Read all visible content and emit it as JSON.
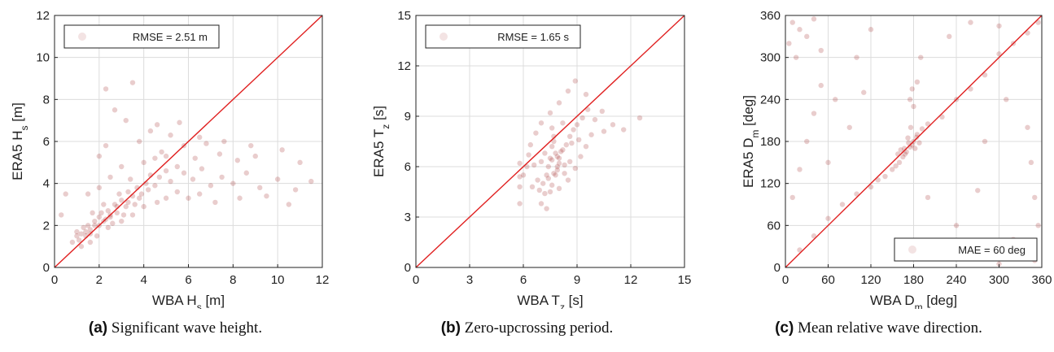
{
  "chart_data": [
    {
      "type": "scatter",
      "xlabel": "WBA H",
      "xlabel_sub": "s",
      "xlabel_unit": " [m]",
      "ylabel": "ERA5 H",
      "ylabel_sub": "s",
      "ylabel_unit": " [m]",
      "xlim": [
        0,
        12
      ],
      "ylim": [
        0,
        12
      ],
      "xticks": [
        0,
        2,
        4,
        6,
        8,
        10,
        12
      ],
      "yticks": [
        0,
        2,
        4,
        6,
        8,
        10,
        12
      ],
      "grid": true,
      "reference_line": "y = x",
      "legend": {
        "text": "RMSE = 2.51 m",
        "placement": "top-left"
      },
      "point_color": "#9b1c1c",
      "line_color": "#e02020",
      "points": [
        [
          1.0,
          1.5
        ],
        [
          1.2,
          1.6
        ],
        [
          1.4,
          1.7
        ],
        [
          1.5,
          2.0
        ],
        [
          1.6,
          1.8
        ],
        [
          1.8,
          2.2
        ],
        [
          2.0,
          2.4
        ],
        [
          2.0,
          2.0
        ],
        [
          2.1,
          2.6
        ],
        [
          2.3,
          2.3
        ],
        [
          2.4,
          2.7
        ],
        [
          2.5,
          2.5
        ],
        [
          2.7,
          3.0
        ],
        [
          2.8,
          2.6
        ],
        [
          3.0,
          3.2
        ],
        [
          3.2,
          2.9
        ],
        [
          3.3,
          3.6
        ],
        [
          3.5,
          3.4
        ],
        [
          3.7,
          3.8
        ],
        [
          3.9,
          3.5
        ],
        [
          4.1,
          4.0
        ],
        [
          4.3,
          4.4
        ],
        [
          4.5,
          3.9
        ],
        [
          4.7,
          4.3
        ],
        [
          5.0,
          4.6
        ],
        [
          5.2,
          4.1
        ],
        [
          5.5,
          4.8
        ],
        [
          5.8,
          4.5
        ],
        [
          6.2,
          4.2
        ],
        [
          6.6,
          4.7
        ],
        [
          7.0,
          3.9
        ],
        [
          7.5,
          4.3
        ],
        [
          8.0,
          4.0
        ],
        [
          8.6,
          4.5
        ],
        [
          9.2,
          3.8
        ],
        [
          10.0,
          4.2
        ],
        [
          10.8,
          3.7
        ],
        [
          11.5,
          4.1
        ],
        [
          1.1,
          1.3
        ],
        [
          1.3,
          1.9
        ],
        [
          1.7,
          2.6
        ],
        [
          1.9,
          1.5
        ],
        [
          2.2,
          3.0
        ],
        [
          2.6,
          2.1
        ],
        [
          2.9,
          3.5
        ],
        [
          3.1,
          2.5
        ],
        [
          3.4,
          4.2
        ],
        [
          3.6,
          3.0
        ],
        [
          2.0,
          5.3
        ],
        [
          2.3,
          5.8
        ],
        [
          2.7,
          7.5
        ],
        [
          3.2,
          7.0
        ],
        [
          3.8,
          6.0
        ],
        [
          4.3,
          6.5
        ],
        [
          4.8,
          5.5
        ],
        [
          5.2,
          6.3
        ],
        [
          5.8,
          5.8
        ],
        [
          6.3,
          5.2
        ],
        [
          6.8,
          5.9
        ],
        [
          7.4,
          5.4
        ],
        [
          8.2,
          5.1
        ],
        [
          9.0,
          5.3
        ],
        [
          1.5,
          3.5
        ],
        [
          2.0,
          3.8
        ],
        [
          2.5,
          4.3
        ],
        [
          3.0,
          4.8
        ],
        [
          0.3,
          2.5
        ],
        [
          0.5,
          3.5
        ],
        [
          0.8,
          1.2
        ],
        [
          1.2,
          1.0
        ],
        [
          1.6,
          1.2
        ],
        [
          2.4,
          1.9
        ],
        [
          3.0,
          2.2
        ],
        [
          3.5,
          2.5
        ],
        [
          4.0,
          2.9
        ],
        [
          4.6,
          3.1
        ],
        [
          5.0,
          3.3
        ],
        [
          5.5,
          3.6
        ],
        [
          6.0,
          3.3
        ],
        [
          6.5,
          3.5
        ],
        [
          7.2,
          3.1
        ],
        [
          8.3,
          3.3
        ],
        [
          9.5,
          3.4
        ],
        [
          10.5,
          3.0
        ],
        [
          11.0,
          5.0
        ],
        [
          4.0,
          5.0
        ],
        [
          4.5,
          5.2
        ],
        [
          5.0,
          5.3
        ],
        [
          1.8,
          2.0
        ],
        [
          2.2,
          2.2
        ],
        [
          2.5,
          2.4
        ],
        [
          1.4,
          1.5
        ],
        [
          1.6,
          1.6
        ],
        [
          2.8,
          2.9
        ],
        [
          3.3,
          3.1
        ],
        [
          3.8,
          3.3
        ],
        [
          4.2,
          3.7
        ],
        [
          1.0,
          1.7
        ],
        [
          2.3,
          8.5
        ],
        [
          3.5,
          8.8
        ],
        [
          4.6,
          6.8
        ],
        [
          5.6,
          6.9
        ],
        [
          6.5,
          6.2
        ],
        [
          7.6,
          6.0
        ],
        [
          8.8,
          5.8
        ],
        [
          10.2,
          5.6
        ]
      ]
    },
    {
      "type": "scatter",
      "xlabel": "WBA T",
      "xlabel_sub": "z",
      "xlabel_unit": " [s]",
      "ylabel": "ERA5 T",
      "ylabel_sub": "z",
      "ylabel_unit": " [s]",
      "xlim": [
        0,
        15
      ],
      "ylim": [
        0,
        15
      ],
      "xticks": [
        0,
        3,
        6,
        9,
        12,
        15
      ],
      "yticks": [
        0,
        3,
        6,
        9,
        12,
        15
      ],
      "grid": true,
      "reference_line": "y = x",
      "legend": {
        "text": "RMSE = 1.65 s",
        "placement": "top-left"
      },
      "point_color": "#9b1c1c",
      "line_color": "#e02020",
      "points": [
        [
          7.5,
          6.5
        ],
        [
          7.8,
          6.8
        ],
        [
          7.6,
          7.2
        ],
        [
          8.0,
          6.2
        ],
        [
          7.9,
          5.8
        ],
        [
          7.7,
          7.5
        ],
        [
          8.2,
          7.0
        ],
        [
          7.4,
          6.0
        ],
        [
          7.3,
          5.5
        ],
        [
          8.4,
          7.3
        ],
        [
          7.9,
          6.6
        ],
        [
          7.6,
          6.4
        ],
        [
          8.1,
          6.9
        ],
        [
          7.7,
          5.6
        ],
        [
          7.2,
          6.8
        ],
        [
          8.3,
          6.1
        ],
        [
          8.6,
          7.8
        ],
        [
          8.8,
          8.2
        ],
        [
          9.0,
          8.5
        ],
        [
          9.3,
          8.9
        ],
        [
          9.6,
          9.4
        ],
        [
          10.0,
          8.8
        ],
        [
          10.4,
          9.3
        ],
        [
          11.0,
          8.5
        ],
        [
          11.6,
          8.2
        ],
        [
          12.5,
          8.9
        ],
        [
          6.8,
          5.2
        ],
        [
          6.5,
          4.8
        ],
        [
          6.9,
          4.6
        ],
        [
          7.1,
          5.0
        ],
        [
          7.5,
          4.5
        ],
        [
          8.0,
          4.7
        ],
        [
          8.5,
          5.2
        ],
        [
          8.9,
          5.9
        ],
        [
          9.2,
          6.6
        ],
        [
          9.5,
          7.2
        ],
        [
          6.2,
          6.0
        ],
        [
          6.0,
          5.5
        ],
        [
          6.4,
          7.3
        ],
        [
          6.7,
          8.0
        ],
        [
          7.0,
          8.6
        ],
        [
          7.5,
          9.2
        ],
        [
          8.0,
          9.8
        ],
        [
          8.5,
          10.5
        ],
        [
          8.9,
          11.1
        ],
        [
          9.5,
          10.3
        ],
        [
          5.8,
          4.8
        ],
        [
          5.8,
          5.4
        ],
        [
          5.8,
          6.2
        ],
        [
          5.8,
          3.8
        ],
        [
          7.8,
          5.5
        ],
        [
          7.9,
          6.0
        ],
        [
          8.0,
          6.5
        ],
        [
          7.7,
          7.8
        ],
        [
          7.6,
          8.3
        ],
        [
          8.2,
          8.6
        ],
        [
          8.7,
          7.4
        ],
        [
          9.1,
          7.6
        ],
        [
          9.8,
          7.9
        ],
        [
          10.5,
          8.1
        ],
        [
          7.4,
          5.3
        ],
        [
          7.6,
          4.9
        ],
        [
          7.2,
          4.4
        ],
        [
          7.0,
          3.8
        ],
        [
          7.3,
          3.5
        ],
        [
          8.6,
          6.3
        ],
        [
          8.3,
          5.6
        ],
        [
          6.6,
          6.1
        ],
        [
          6.3,
          6.7
        ],
        [
          7.0,
          6.3
        ]
      ]
    },
    {
      "type": "scatter",
      "xlabel": "WBA D",
      "xlabel_sub": "m",
      "xlabel_unit": " [deg]",
      "ylabel": "ERA5 D",
      "ylabel_sub": "m",
      "ylabel_unit": " [deg]",
      "xlim": [
        0,
        360
      ],
      "ylim": [
        0,
        360
      ],
      "xticks": [
        0,
        60,
        120,
        180,
        240,
        300,
        360
      ],
      "yticks": [
        0,
        60,
        120,
        180,
        240,
        300,
        360
      ],
      "grid": true,
      "reference_line": "y = x",
      "legend": {
        "text": "MAE = 60 deg",
        "placement": "bottom-right"
      },
      "point_color": "#9b1c1c",
      "line_color": "#e02020",
      "points": [
        [
          170,
          165
        ],
        [
          175,
          172
        ],
        [
          180,
          180
        ],
        [
          165,
          158
        ],
        [
          160,
          150
        ],
        [
          185,
          190
        ],
        [
          178,
          175
        ],
        [
          168,
          162
        ],
        [
          172,
          185
        ],
        [
          182,
          170
        ],
        [
          176,
          200
        ],
        [
          180,
          230
        ],
        [
          178,
          255
        ],
        [
          185,
          265
        ],
        [
          175,
          240
        ],
        [
          150,
          140
        ],
        [
          140,
          130
        ],
        [
          130,
          125
        ],
        [
          120,
          115
        ],
        [
          100,
          105
        ],
        [
          80,
          90
        ],
        [
          60,
          70
        ],
        [
          40,
          45
        ],
        [
          20,
          25
        ],
        [
          200,
          205
        ],
        [
          220,
          215
        ],
        [
          240,
          240
        ],
        [
          260,
          255
        ],
        [
          280,
          275
        ],
        [
          300,
          305
        ],
        [
          320,
          320
        ],
        [
          340,
          335
        ],
        [
          355,
          350
        ],
        [
          10,
          350
        ],
        [
          20,
          340
        ],
        [
          30,
          330
        ],
        [
          50,
          310
        ],
        [
          15,
          300
        ],
        [
          5,
          320
        ],
        [
          40,
          355
        ],
        [
          350,
          10
        ],
        [
          340,
          20
        ],
        [
          330,
          30
        ],
        [
          290,
          15
        ],
        [
          300,
          5
        ],
        [
          320,
          40
        ],
        [
          355,
          60
        ],
        [
          350,
          100
        ],
        [
          345,
          150
        ],
        [
          340,
          200
        ],
        [
          10,
          100
        ],
        [
          20,
          140
        ],
        [
          30,
          180
        ],
        [
          40,
          220
        ],
        [
          50,
          260
        ],
        [
          100,
          300
        ],
        [
          120,
          340
        ],
        [
          230,
          330
        ],
        [
          260,
          350
        ],
        [
          300,
          345
        ],
        [
          90,
          200
        ],
        [
          110,
          250
        ],
        [
          200,
          100
        ],
        [
          240,
          60
        ],
        [
          270,
          110
        ],
        [
          280,
          180
        ],
        [
          310,
          240
        ],
        [
          190,
          300
        ],
        [
          60,
          150
        ],
        [
          70,
          240
        ],
        [
          155,
          145
        ],
        [
          162,
          168
        ],
        [
          188,
          178
        ],
        [
          192,
          198
        ],
        [
          173,
          178
        ],
        [
          167,
          170
        ],
        [
          158,
          162
        ],
        [
          184,
          186
        ]
      ]
    }
  ],
  "captions": [
    {
      "tag": "(a)",
      "text": " Significant wave height."
    },
    {
      "tag": "(b)",
      "text": " Zero-upcrossing period."
    },
    {
      "tag": "(c)",
      "text": " Mean relative wave direction."
    }
  ]
}
